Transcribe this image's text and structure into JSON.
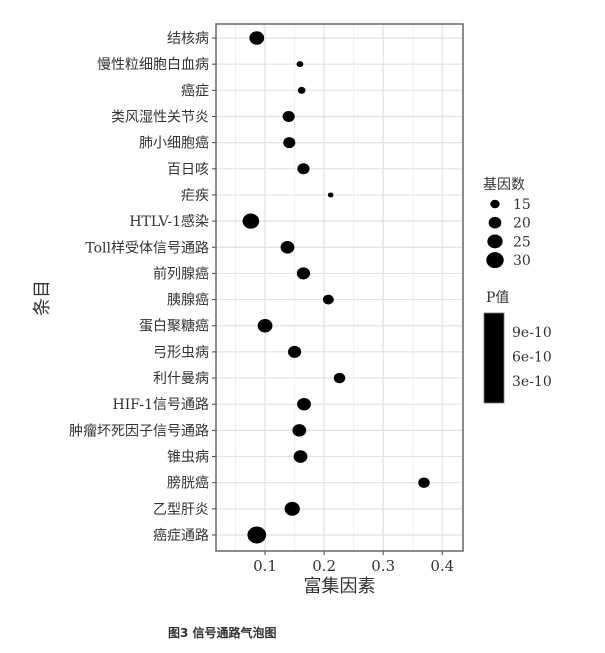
{
  "chart_data": {
    "type": "scatter",
    "subtype": "bubble",
    "xlabel": "富集因素",
    "ylabel": "条目",
    "xlim": [
      0.017,
      0.435
    ],
    "xticks": [
      0.1,
      0.2,
      0.3,
      0.4
    ],
    "xtick_labels": [
      "0.1",
      "0.2",
      "0.3",
      "0.4"
    ],
    "grid": true,
    "categories": [
      "结核病",
      "慢性粒细胞白血病",
      "癌症",
      "类风湿性关节炎",
      "肺小细胞癌",
      "百日咳",
      "疟疾",
      "HTLV-1感染",
      "Toll样受体信号通路",
      "前列腺癌",
      "胰腺癌",
      "蛋白聚糖癌",
      "弓形虫病",
      "利什曼病",
      "HIF-1信号通路",
      "肿瘤坏死因子信号通路",
      "锥虫病",
      "膀胱癌",
      "乙型肝炎",
      "癌症通路"
    ],
    "x": [
      0.086,
      0.159,
      0.162,
      0.14,
      0.141,
      0.165,
      0.211,
      0.076,
      0.138,
      0.165,
      0.207,
      0.1,
      0.15,
      0.226,
      0.166,
      0.158,
      0.16,
      0.369,
      0.146,
      0.086
    ],
    "size": [
      24,
      12,
      13,
      19,
      19,
      19,
      11,
      28,
      22,
      21,
      17,
      24,
      21,
      18,
      22,
      22,
      22,
      18,
      25,
      33
    ],
    "size_legend": {
      "title": "基因数",
      "values": [
        15,
        20,
        25,
        30
      ],
      "labels": [
        "15",
        "20",
        "25",
        "30"
      ]
    },
    "color_legend": {
      "title": "P值",
      "labels": [
        "9e-10",
        "6e-10",
        "3e-10"
      ],
      "color": "#000000"
    },
    "legend_placement": "right",
    "point_color": "#000000"
  },
  "caption": "图3 信号通路气泡图"
}
